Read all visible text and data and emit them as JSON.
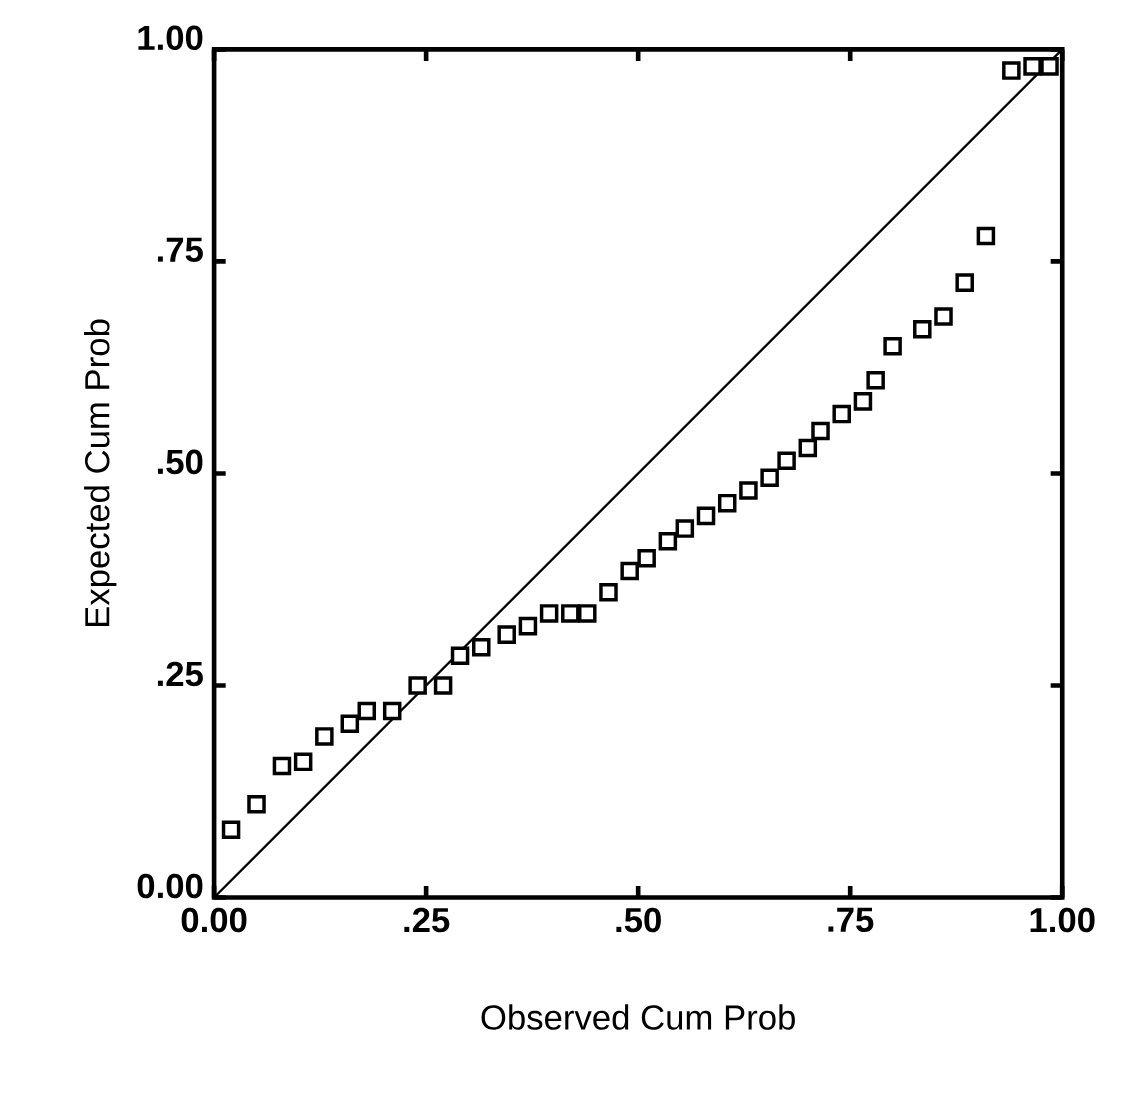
{
  "chart_data": {
    "type": "scatter",
    "xlabel": "Observed Cum Prob",
    "ylabel": "Expected Cum Prob",
    "xlim": [
      0,
      1
    ],
    "ylim": [
      0,
      1
    ],
    "xticks": [
      {
        "value": 0,
        "label": "0.00"
      },
      {
        "value": 0.25,
        "label": ".25"
      },
      {
        "value": 0.5,
        "label": ".50"
      },
      {
        "value": 0.75,
        "label": ".75"
      },
      {
        "value": 1,
        "label": "1.00"
      }
    ],
    "yticks": [
      {
        "value": 0,
        "label": "0.00"
      },
      {
        "value": 0.25,
        "label": ".25"
      },
      {
        "value": 0.5,
        "label": ".50"
      },
      {
        "value": 0.75,
        "label": ".75"
      },
      {
        "value": 1,
        "label": "1.00"
      }
    ],
    "series": [
      {
        "marker": "square",
        "color": "#000000",
        "x": [
          0.02,
          0.05,
          0.08,
          0.105,
          0.13,
          0.16,
          0.18,
          0.21,
          0.24,
          0.27,
          0.29,
          0.315,
          0.345,
          0.37,
          0.395,
          0.42,
          0.44,
          0.465,
          0.49,
          0.51,
          0.535,
          0.555,
          0.58,
          0.605,
          0.63,
          0.655,
          0.675,
          0.7,
          0.715,
          0.74,
          0.765,
          0.78,
          0.8,
          0.835,
          0.86,
          0.885,
          0.91,
          0.94,
          0.965,
          0.985
        ],
        "values": [
          0.08,
          0.11,
          0.155,
          0.16,
          0.19,
          0.205,
          0.22,
          0.22,
          0.25,
          0.25,
          0.285,
          0.295,
          0.31,
          0.32,
          0.335,
          0.335,
          0.335,
          0.36,
          0.385,
          0.4,
          0.42,
          0.435,
          0.45,
          0.465,
          0.48,
          0.495,
          0.515,
          0.53,
          0.55,
          0.57,
          0.585,
          0.61,
          0.65,
          0.67,
          0.685,
          0.725,
          0.78,
          0.975,
          0.98,
          0.98
        ]
      },
      {
        "type": "line",
        "marker": "none",
        "color": "#000000",
        "x": [
          0,
          1
        ],
        "values": [
          0,
          1
        ]
      }
    ]
  }
}
